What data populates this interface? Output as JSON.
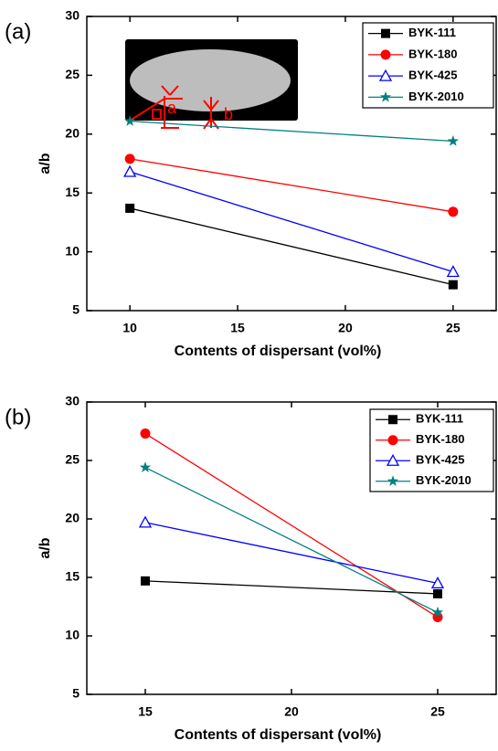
{
  "chart_data": [
    {
      "type": "line",
      "panel_label": "(a)",
      "xlabel": "Contents of dispersant (vol%)",
      "ylabel": "a/b",
      "x": [
        10,
        25
      ],
      "xlim": [
        8,
        27
      ],
      "ylim": [
        5,
        30
      ],
      "xticks": [
        10,
        15,
        20,
        25
      ],
      "yticks": [
        5,
        10,
        15,
        20,
        25,
        30
      ],
      "legend": "upper right",
      "inset_labels": [
        "a",
        "b"
      ],
      "series": [
        {
          "name": "BYK-111",
          "color": "#000000",
          "marker": "square",
          "values": [
            13.7,
            7.2
          ]
        },
        {
          "name": "BYK-180",
          "color": "#ff0000",
          "marker": "circle",
          "values": [
            17.9,
            13.4
          ]
        },
        {
          "name": "BYK-425",
          "color": "#0000ff",
          "marker": "triangle-open",
          "values": [
            16.8,
            8.3
          ]
        },
        {
          "name": "BYK-2010",
          "color": "#008080",
          "marker": "star",
          "values": [
            21.1,
            19.4
          ]
        }
      ]
    },
    {
      "type": "line",
      "panel_label": "(b)",
      "xlabel": "Contents of dispersant (vol%)",
      "ylabel": "a/b",
      "x": [
        15,
        25
      ],
      "xlim": [
        13,
        27
      ],
      "ylim": [
        5,
        30
      ],
      "xticks": [
        15,
        20,
        25
      ],
      "yticks": [
        5,
        10,
        15,
        20,
        25,
        30
      ],
      "legend": "upper right",
      "series": [
        {
          "name": "BYK-111",
          "color": "#000000",
          "marker": "square",
          "values": [
            14.7,
            13.6
          ]
        },
        {
          "name": "BYK-180",
          "color": "#ff0000",
          "marker": "circle",
          "values": [
            27.3,
            11.6
          ]
        },
        {
          "name": "BYK-425",
          "color": "#0000ff",
          "marker": "triangle-open",
          "values": [
            19.7,
            14.5
          ]
        },
        {
          "name": "BYK-2010",
          "color": "#008080",
          "marker": "star",
          "values": [
            24.4,
            12.0
          ]
        }
      ]
    }
  ]
}
